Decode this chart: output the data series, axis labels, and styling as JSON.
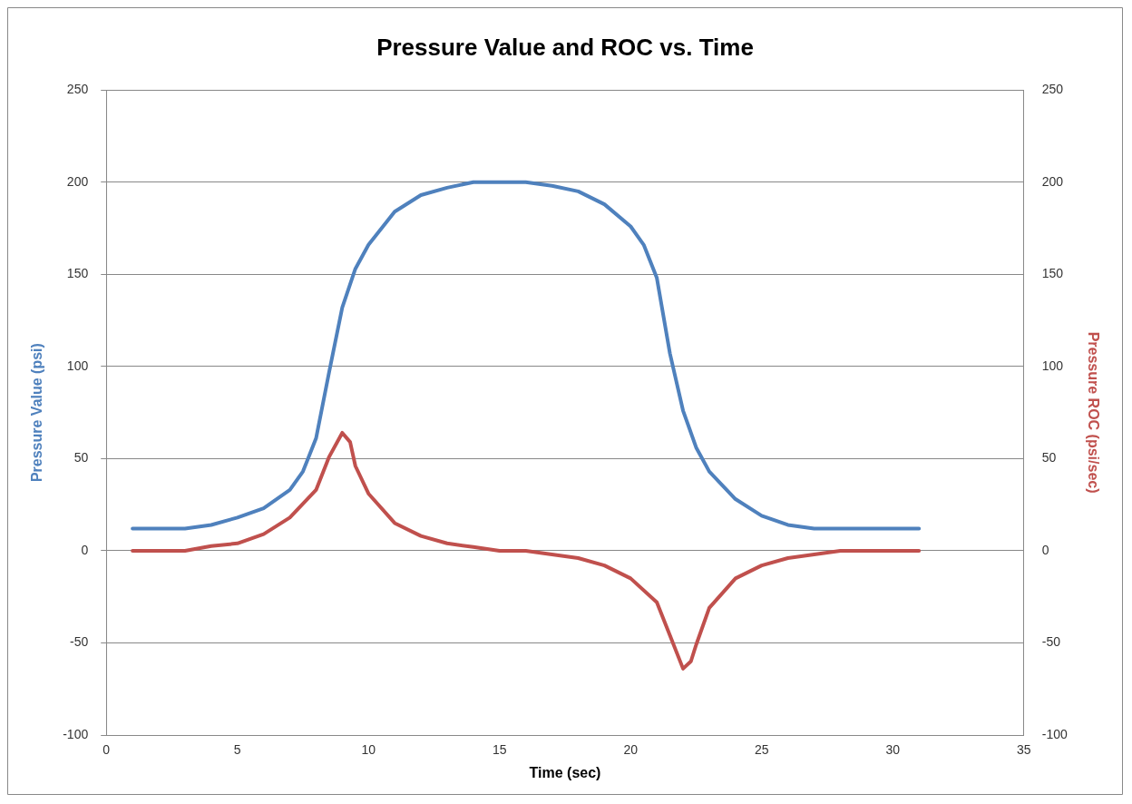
{
  "chart_data": {
    "type": "line",
    "title": "Pressure Value and ROC vs. Time",
    "xlabel": "Time (sec)",
    "ylabel": "Pressure Value (psi)",
    "y2label": "Pressure ROC (psi/sec)",
    "xlim": [
      0,
      35
    ],
    "xticks": [
      0,
      5,
      10,
      15,
      20,
      25,
      30,
      35
    ],
    "ylim": [
      -100,
      250
    ],
    "yticks": [
      -100,
      -50,
      0,
      50,
      100,
      150,
      200,
      250
    ],
    "y2lim": [
      -100,
      250
    ],
    "y2ticks": [
      -100,
      -50,
      0,
      50,
      100,
      150,
      200,
      250
    ],
    "grid": "y",
    "legend": false,
    "marker": "none",
    "line_style": "solid",
    "series": [
      {
        "color": "#4f81bd",
        "x": [
          1,
          3,
          4,
          5,
          6,
          7,
          7.5,
          8,
          8.5,
          9,
          9.5,
          10,
          11,
          12,
          13,
          14,
          16,
          17,
          18,
          19,
          20,
          20.5,
          21,
          21.5,
          22,
          22.5,
          23,
          24,
          25,
          26,
          27,
          31
        ],
        "values": [
          12,
          12,
          14,
          18,
          23,
          33,
          43,
          61,
          97,
          132,
          153,
          166,
          184,
          193,
          197,
          200,
          200,
          198,
          195,
          188,
          176,
          166,
          148,
          107,
          76,
          56,
          43,
          28,
          19,
          14,
          12,
          12
        ]
      },
      {
        "color": "#c0504d",
        "axis": "y2",
        "x": [
          1,
          3,
          4,
          5,
          6,
          7,
          8,
          8.5,
          9,
          9.3,
          9.5,
          10,
          11,
          12,
          13,
          14,
          15,
          16,
          17,
          18,
          19,
          20,
          21,
          21.5,
          22,
          22.3,
          22.5,
          23,
          24,
          25,
          26,
          27,
          28,
          31
        ],
        "values": [
          0,
          0,
          2.5,
          4,
          9,
          18,
          33,
          51,
          64,
          59,
          46,
          31,
          15,
          8,
          4,
          2,
          0,
          0,
          -2,
          -4,
          -8,
          -15,
          -28,
          -46,
          -64,
          -60,
          -51,
          -31,
          -15,
          -8,
          -4,
          -2,
          0,
          0
        ]
      }
    ]
  }
}
